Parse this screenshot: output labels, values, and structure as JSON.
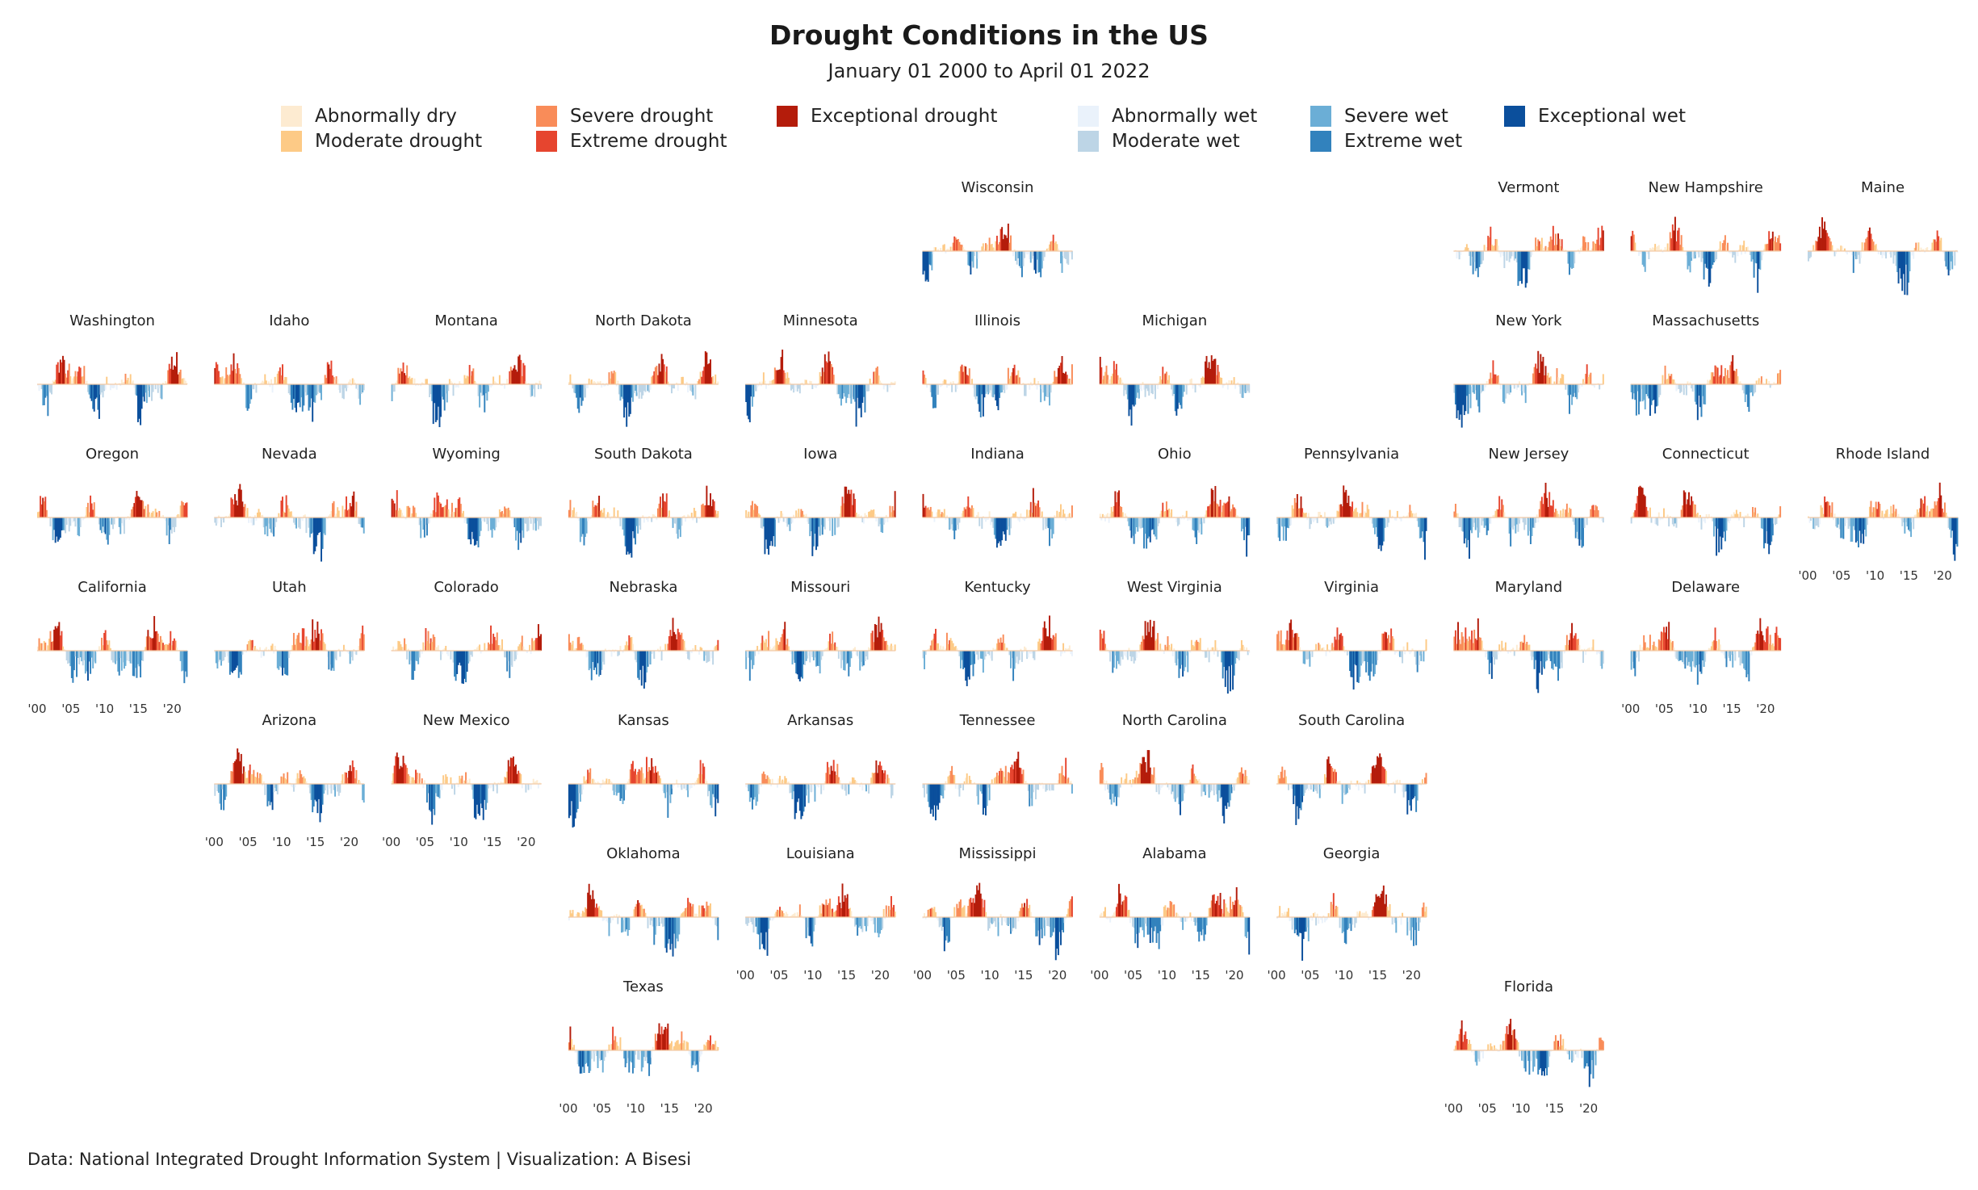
{
  "header": {
    "title": "Drought Conditions in the US",
    "subtitle": "January 01 2000 to April 01 2022"
  },
  "legend": [
    {
      "label": "Abnormally dry",
      "color": "#fdebd1"
    },
    {
      "label": "Moderate drought",
      "color": "#fdca86"
    },
    {
      "label": "Severe drought",
      "color": "#f98c59"
    },
    {
      "label": "Extreme drought",
      "color": "#e6452f"
    },
    {
      "label": "Exceptional drought",
      "color": "#b41c0b"
    },
    {
      "label": "Abnormally wet",
      "color": "#eaf2fb"
    },
    {
      "label": "Moderate wet",
      "color": "#bdd5e6"
    },
    {
      "label": "Severe wet",
      "color": "#6baed6"
    },
    {
      "label": "Extreme wet",
      "color": "#3282bd"
    },
    {
      "label": "Exceptional wet",
      "color": "#0b4f9c"
    }
  ],
  "caption": "Data: National Integrated Drought Information System | Visualization: A Bisesi",
  "chart_data": {
    "type": "area",
    "layout": "geographic small multiples (grid of US states)",
    "x_range": [
      "January 01 2000",
      "April 01 2022"
    ],
    "x_ticks": [
      "'00",
      "'05",
      "'10",
      "'15",
      "'20"
    ],
    "grid": false,
    "legend_position": "top",
    "panels": [
      {
        "state": "Wisconsin",
        "row": 0,
        "col": 5,
        "axis": false
      },
      {
        "state": "Vermont",
        "row": 0,
        "col": 8,
        "axis": false
      },
      {
        "state": "New Hampshire",
        "row": 0,
        "col": 9,
        "axis": false
      },
      {
        "state": "Maine",
        "row": 0,
        "col": 10,
        "axis": false
      },
      {
        "state": "Washington",
        "row": 1,
        "col": 0,
        "axis": false
      },
      {
        "state": "Idaho",
        "row": 1,
        "col": 1,
        "axis": false
      },
      {
        "state": "Montana",
        "row": 1,
        "col": 2,
        "axis": false
      },
      {
        "state": "North Dakota",
        "row": 1,
        "col": 3,
        "axis": false
      },
      {
        "state": "Minnesota",
        "row": 1,
        "col": 4,
        "axis": false
      },
      {
        "state": "Illinois",
        "row": 1,
        "col": 5,
        "axis": false
      },
      {
        "state": "Michigan",
        "row": 1,
        "col": 6,
        "axis": false
      },
      {
        "state": "New York",
        "row": 1,
        "col": 8,
        "axis": false
      },
      {
        "state": "Massachusetts",
        "row": 1,
        "col": 9,
        "axis": false
      },
      {
        "state": "Oregon",
        "row": 2,
        "col": 0,
        "axis": false
      },
      {
        "state": "Nevada",
        "row": 2,
        "col": 1,
        "axis": false
      },
      {
        "state": "Wyoming",
        "row": 2,
        "col": 2,
        "axis": false
      },
      {
        "state": "South Dakota",
        "row": 2,
        "col": 3,
        "axis": false
      },
      {
        "state": "Iowa",
        "row": 2,
        "col": 4,
        "axis": false
      },
      {
        "state": "Indiana",
        "row": 2,
        "col": 5,
        "axis": false
      },
      {
        "state": "Ohio",
        "row": 2,
        "col": 6,
        "axis": false
      },
      {
        "state": "Pennsylvania",
        "row": 2,
        "col": 7,
        "axis": false
      },
      {
        "state": "New Jersey",
        "row": 2,
        "col": 8,
        "axis": false
      },
      {
        "state": "Connecticut",
        "row": 2,
        "col": 9,
        "axis": false
      },
      {
        "state": "Rhode Island",
        "row": 2,
        "col": 10,
        "axis": true
      },
      {
        "state": "California",
        "row": 3,
        "col": 0,
        "axis": true
      },
      {
        "state": "Utah",
        "row": 3,
        "col": 1,
        "axis": false
      },
      {
        "state": "Colorado",
        "row": 3,
        "col": 2,
        "axis": false
      },
      {
        "state": "Nebraska",
        "row": 3,
        "col": 3,
        "axis": false
      },
      {
        "state": "Missouri",
        "row": 3,
        "col": 4,
        "axis": false
      },
      {
        "state": "Kentucky",
        "row": 3,
        "col": 5,
        "axis": false
      },
      {
        "state": "West Virginia",
        "row": 3,
        "col": 6,
        "axis": false
      },
      {
        "state": "Virginia",
        "row": 3,
        "col": 7,
        "axis": false
      },
      {
        "state": "Maryland",
        "row": 3,
        "col": 8,
        "axis": false
      },
      {
        "state": "Delaware",
        "row": 3,
        "col": 9,
        "axis": true
      },
      {
        "state": "Arizona",
        "row": 4,
        "col": 1,
        "axis": true
      },
      {
        "state": "New Mexico",
        "row": 4,
        "col": 2,
        "axis": true
      },
      {
        "state": "Kansas",
        "row": 4,
        "col": 3,
        "axis": false
      },
      {
        "state": "Arkansas",
        "row": 4,
        "col": 4,
        "axis": false
      },
      {
        "state": "Tennessee",
        "row": 4,
        "col": 5,
        "axis": false
      },
      {
        "state": "North Carolina",
        "row": 4,
        "col": 6,
        "axis": false
      },
      {
        "state": "South Carolina",
        "row": 4,
        "col": 7,
        "axis": false
      },
      {
        "state": "Oklahoma",
        "row": 5,
        "col": 3,
        "axis": false
      },
      {
        "state": "Louisiana",
        "row": 5,
        "col": 4,
        "axis": true
      },
      {
        "state": "Mississippi",
        "row": 5,
        "col": 5,
        "axis": true
      },
      {
        "state": "Alabama",
        "row": 5,
        "col": 6,
        "axis": true
      },
      {
        "state": "Georgia",
        "row": 5,
        "col": 7,
        "axis": true
      },
      {
        "state": "Texas",
        "row": 6,
        "col": 3,
        "axis": true
      },
      {
        "state": "Florida",
        "row": 6,
        "col": 8,
        "axis": true
      }
    ]
  }
}
